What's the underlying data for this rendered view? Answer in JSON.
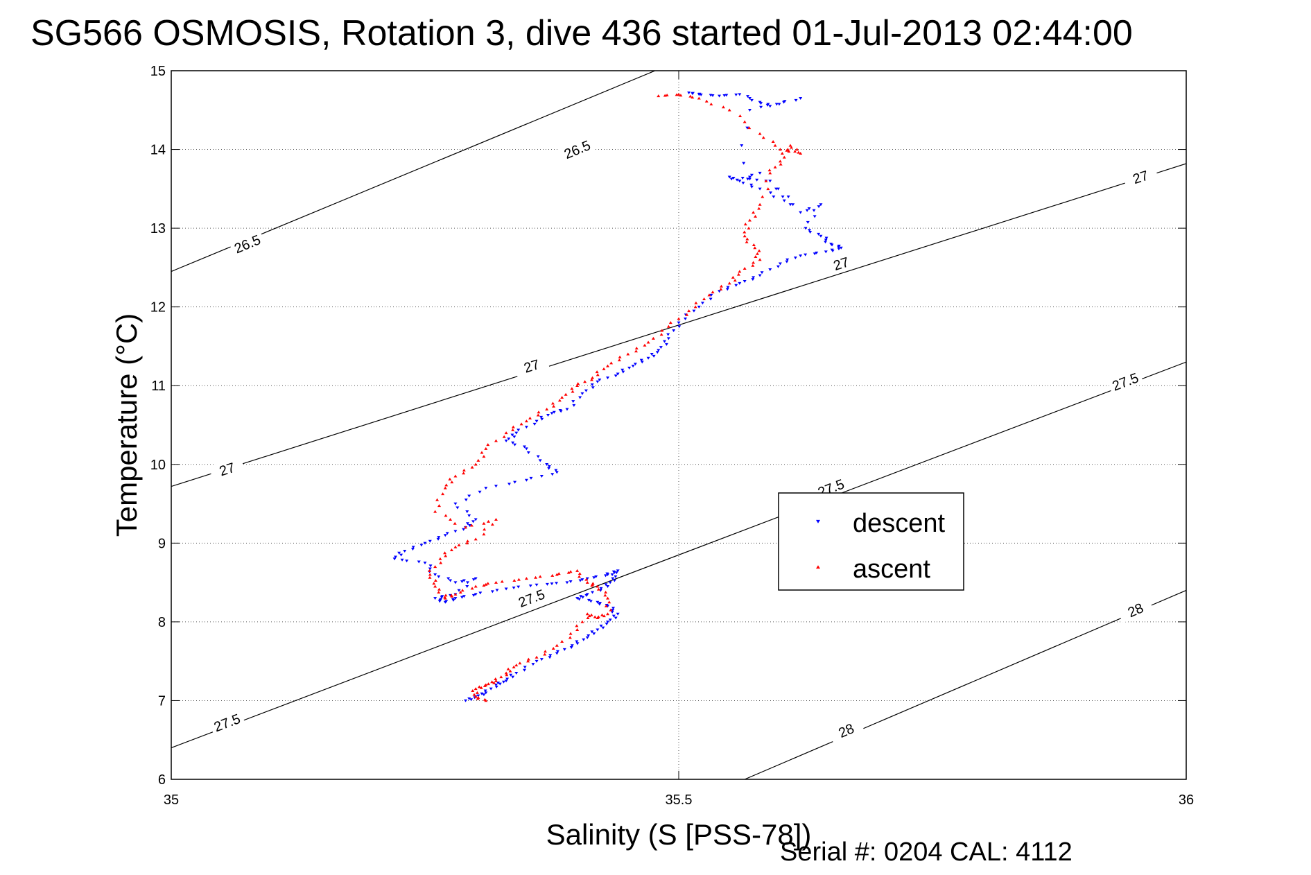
{
  "title": "SG566 OSMOSIS, Rotation 3, dive 436 started 01-Jul-2013 02:44:00",
  "footer": "Serial #: 0204  CAL: 4112",
  "chart_data": {
    "type": "scatter",
    "xlabel": "Salinity (S [PSS-78])",
    "ylabel": "Temperature (°C)",
    "xlim": [
      35,
      36
    ],
    "ylim": [
      6,
      15
    ],
    "xticks": [
      35,
      35.5,
      36
    ],
    "xtick_labels": [
      "35",
      "35.5",
      "36"
    ],
    "yticks": [
      6,
      7,
      8,
      9,
      10,
      11,
      12,
      13,
      14,
      15
    ],
    "ytick_labels": [
      "6",
      "7",
      "8",
      "9",
      "10",
      "11",
      "12",
      "13",
      "14",
      "15"
    ],
    "grid": true,
    "legend_position": "center-right",
    "contours": [
      {
        "label": "26.5",
        "line": [
          [
            35,
            12.45
          ],
          [
            36,
            17.8
          ]
        ],
        "label_at": [
          [
            35.075,
            12.8
          ],
          [
            35.4,
            14.0
          ]
        ]
      },
      {
        "label": "27",
        "line": [
          [
            35,
            9.72
          ],
          [
            36,
            13.82
          ]
        ],
        "label_at": [
          [
            35.055,
            9.94
          ],
          [
            35.355,
            11.25
          ],
          [
            35.66,
            12.55
          ],
          [
            35.955,
            13.65
          ]
        ]
      },
      {
        "label": "27.5",
        "line": [
          [
            35,
            6.4
          ],
          [
            36,
            11.3
          ]
        ],
        "label_at": [
          [
            35.055,
            6.72
          ],
          [
            35.355,
            8.3
          ],
          [
            35.65,
            9.7
          ],
          [
            35.94,
            11.05
          ]
        ]
      },
      {
        "label": "28",
        "line": [
          [
            35.565,
            6
          ],
          [
            36,
            8.4
          ]
        ],
        "label_at": [
          [
            35.665,
            6.62
          ],
          [
            35.95,
            8.15
          ]
        ]
      }
    ],
    "series": [
      {
        "name": "descent",
        "color": "#0000ff",
        "marker": "triangle-down",
        "x": [
          35.51,
          35.52,
          35.54,
          35.56,
          35.58,
          35.59,
          35.62,
          35.57,
          35.56,
          35.58,
          35.61,
          35.58,
          35.56,
          35.55,
          35.59,
          35.62,
          35.64,
          35.625,
          35.64,
          35.65,
          35.66,
          35.645,
          35.62,
          35.6,
          35.58,
          35.56,
          35.54,
          35.52,
          35.5,
          35.49,
          35.48,
          35.47,
          35.455,
          35.44,
          35.42,
          35.405,
          35.39,
          35.375,
          35.36,
          35.34,
          35.33,
          35.35,
          35.37,
          35.38,
          35.35,
          35.31,
          35.28,
          35.3,
          35.29,
          35.27,
          35.25,
          35.23,
          35.22,
          35.25,
          35.26,
          35.28,
          35.3,
          35.28,
          35.26,
          35.27,
          35.28,
          35.3,
          35.33,
          35.36,
          35.39,
          35.41,
          35.43,
          35.44,
          35.435,
          35.43,
          35.41,
          35.4,
          35.42,
          35.43,
          35.44,
          35.43,
          35.42,
          35.41,
          35.395,
          35.38,
          35.36,
          35.34,
          35.33,
          35.32,
          35.31,
          35.3,
          35.29
        ],
        "y": [
          14.72,
          14.7,
          14.68,
          14.7,
          14.6,
          14.55,
          14.65,
          14.5,
          13.6,
          13.7,
          13.3,
          13.5,
          13.6,
          13.65,
          13.6,
          13.2,
          13.3,
          13.0,
          12.9,
          12.8,
          12.75,
          12.7,
          12.65,
          12.55,
          12.4,
          12.3,
          12.2,
          12.0,
          11.8,
          11.6,
          11.45,
          11.35,
          11.25,
          11.15,
          11.05,
          10.9,
          10.7,
          10.65,
          10.55,
          10.4,
          10.3,
          10.2,
          10.0,
          9.9,
          9.8,
          9.7,
          9.5,
          9.3,
          9.2,
          9.1,
          9.0,
          8.9,
          8.8,
          8.75,
          8.6,
          8.5,
          8.55,
          8.35,
          8.3,
          8.25,
          8.3,
          8.35,
          8.42,
          8.47,
          8.5,
          8.55,
          8.6,
          8.65,
          8.55,
          8.45,
          8.35,
          8.3,
          8.25,
          8.2,
          8.1,
          8.0,
          7.9,
          7.8,
          7.7,
          7.6,
          7.5,
          7.35,
          7.25,
          7.2,
          7.1,
          7.05,
          7.0
        ]
      },
      {
        "name": "ascent",
        "color": "#ff0000",
        "marker": "triangle-up",
        "x": [
          35.48,
          35.5,
          35.52,
          35.55,
          35.58,
          35.6,
          35.62,
          35.61,
          35.6,
          35.59,
          35.58,
          35.57,
          35.565,
          35.575,
          35.58,
          35.56,
          35.55,
          35.53,
          35.51,
          35.49,
          35.47,
          35.45,
          35.43,
          35.415,
          35.4,
          35.385,
          35.37,
          35.35,
          35.33,
          35.31,
          35.3,
          35.28,
          35.27,
          35.26,
          35.29,
          35.32,
          35.3,
          35.28,
          35.265,
          35.255,
          35.26,
          35.27,
          35.28,
          35.3,
          35.32,
          35.35,
          35.38,
          35.4,
          35.41,
          35.42,
          35.43,
          35.43,
          35.42,
          35.41,
          35.4,
          35.38,
          35.36,
          35.34,
          35.33,
          35.32,
          35.31,
          35.3,
          35.3,
          35.31
        ],
        "y": [
          14.68,
          14.7,
          14.65,
          14.5,
          14.2,
          14.0,
          13.95,
          14.05,
          13.85,
          13.7,
          13.3,
          13.1,
          12.9,
          12.75,
          12.6,
          12.45,
          12.3,
          12.15,
          11.95,
          11.75,
          11.55,
          11.4,
          11.25,
          11.1,
          11.0,
          10.85,
          10.7,
          10.55,
          10.4,
          10.2,
          10.0,
          9.85,
          9.7,
          9.4,
          9.2,
          9.3,
          9.05,
          8.95,
          8.8,
          8.6,
          8.45,
          8.3,
          8.35,
          8.45,
          8.5,
          8.55,
          8.6,
          8.65,
          8.5,
          8.45,
          8.3,
          8.1,
          8.05,
          8.1,
          7.9,
          7.7,
          7.55,
          7.45,
          7.35,
          7.25,
          7.2,
          7.15,
          7.05,
          7.0
        ]
      }
    ]
  }
}
